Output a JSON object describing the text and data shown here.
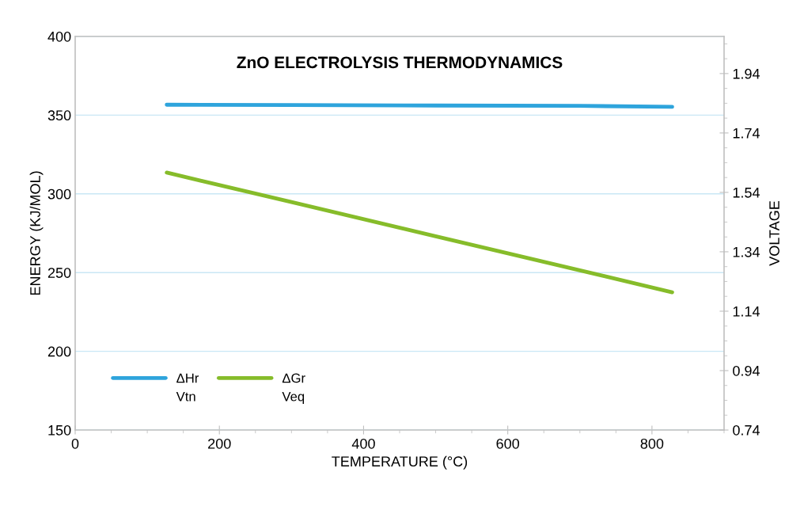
{
  "chart_data": {
    "type": "line",
    "title": "ZnO ELECTROLYSIS THERMODYNAMICS",
    "xlabel": "TEMPERATURE (°C)",
    "ylabel": "ENERGY (KJ/MOL)",
    "y2label": "VOLTAGE",
    "series": [
      {
        "name": "ΔHr",
        "color": "#2ea4dc",
        "x": [
          127,
          300,
          500,
          700,
          828
        ],
        "values": [
          356.6,
          356.4,
          356.1,
          355.9,
          355.3
        ]
      },
      {
        "name": "ΔGr",
        "color": "#86bc2a",
        "x": [
          127,
          300,
          500,
          700,
          828
        ],
        "values": [
          313.5,
          294.8,
          273.1,
          251.4,
          237.5
        ]
      }
    ],
    "annotations": [
      "Vtn",
      "Veq"
    ],
    "xlim": [
      0,
      900
    ],
    "xticks": [
      0,
      200,
      400,
      600,
      800
    ],
    "ylim": [
      150,
      400
    ],
    "yticks": [
      150,
      200,
      250,
      300,
      350,
      400
    ],
    "y2lim": [
      0.74,
      2.065
    ],
    "y2ticks": [
      0.74,
      0.94,
      1.14,
      1.34,
      1.54,
      1.74,
      1.94
    ],
    "grid": "y",
    "legend": "bottom left",
    "marker": "none",
    "line_style": "solid"
  }
}
